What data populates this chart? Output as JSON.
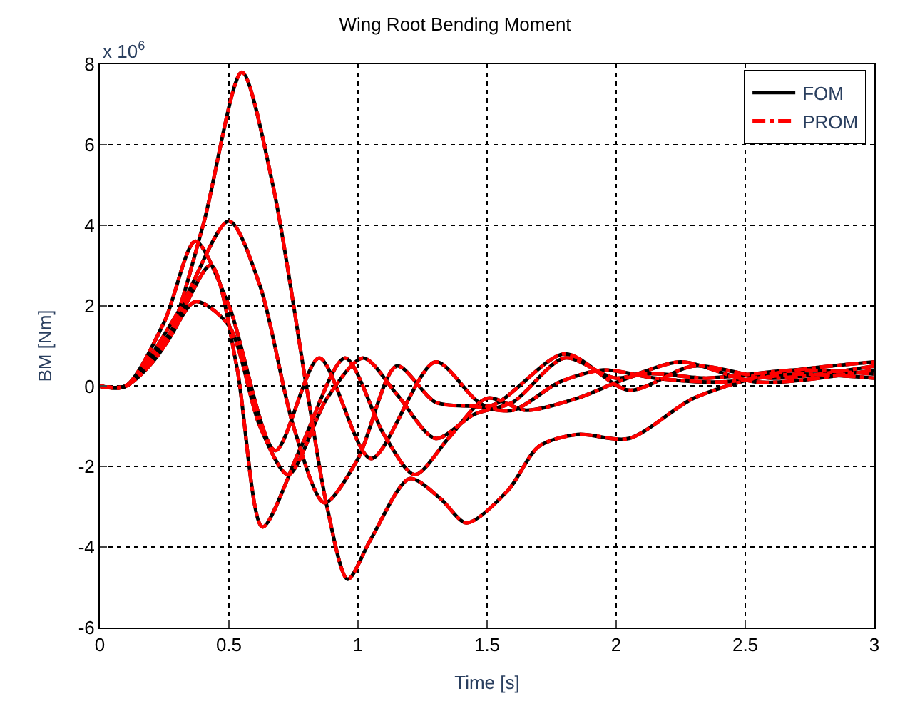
{
  "chart_data": {
    "type": "line",
    "title": "Wing Root Bending Moment",
    "xlabel": "Time [s]",
    "ylabel": "BM [Nm]",
    "annotations": [
      "x 10$^{6}$"
    ],
    "xlim": [
      0,
      3
    ],
    "xticks": [
      0,
      0.5,
      1,
      1.5,
      2,
      2.5,
      3
    ],
    "ylim": [
      -6,
      8
    ],
    "yticks": [
      -6,
      -4,
      -2,
      0,
      2,
      4,
      6,
      8
    ],
    "grid": true,
    "legend": "top right",
    "marker": "none",
    "series": [
      {
        "name": "FOM",
        "color": "#000000",
        "line_style": "solid",
        "x": [
          0,
          0.1,
          0.25,
          0.4,
          0.55,
          0.67,
          0.8,
          0.88,
          0.96,
          1.05,
          1.2,
          1.32,
          1.42,
          1.58,
          1.7,
          1.85,
          2.05,
          2.3,
          2.6,
          3
        ],
        "values": [
          0,
          0,
          1,
          4,
          7.8,
          5,
          0,
          -3,
          -4.8,
          -3.8,
          -2.3,
          -2.8,
          -3.4,
          -2.6,
          -1.5,
          -1.2,
          -1.3,
          -0.3,
          0.3,
          0.6
        ]
      },
      {
        "color": "#000000",
        "line_style": "solid",
        "x": [
          0,
          0.1,
          0.3,
          0.5,
          0.62,
          0.75,
          0.87,
          1.0,
          1.15,
          1.3,
          1.45,
          1.6,
          1.78,
          1.95,
          2.15,
          2.4,
          2.7,
          3
        ],
        "values": [
          0,
          0,
          1.8,
          4.1,
          2.5,
          -1,
          -2.9,
          -1.8,
          0.5,
          -0.4,
          -0.5,
          -0.6,
          0.1,
          0.4,
          0.2,
          0.1,
          0.3,
          0.2
        ]
      },
      {
        "color": "#000000",
        "line_style": "solid",
        "x": [
          0,
          0.1,
          0.25,
          0.37,
          0.5,
          0.68,
          0.85,
          1.05,
          1.3,
          1.5,
          1.8,
          2.05,
          2.3,
          2.6,
          3
        ],
        "values": [
          0,
          0,
          1.6,
          3.6,
          2,
          -1.6,
          0.7,
          -1.8,
          0.6,
          -0.5,
          0.8,
          -0.1,
          0.5,
          0.2,
          0.5
        ]
      },
      {
        "color": "#000000",
        "line_style": "solid",
        "x": [
          0,
          0.1,
          0.28,
          0.43,
          0.53,
          0.63,
          0.78,
          0.95,
          1.1,
          1.22,
          1.35,
          1.5,
          1.65,
          1.85,
          2.1,
          2.35,
          2.7,
          3
        ],
        "values": [
          0,
          0,
          1.4,
          3.0,
          0.5,
          -3.5,
          -1.5,
          0.7,
          -1.2,
          -2.2,
          -1.3,
          -0.3,
          -0.6,
          -0.3,
          0.3,
          0.2,
          0.4,
          0.3
        ]
      },
      {
        "color": "#000000",
        "line_style": "solid",
        "x": [
          0,
          0.1,
          0.25,
          0.37,
          0.5,
          0.62,
          0.73,
          0.88,
          1.02,
          1.15,
          1.3,
          1.45,
          1.6,
          1.8,
          2.0,
          2.25,
          2.55,
          3
        ],
        "values": [
          0,
          0,
          1,
          2.1,
          1.5,
          -1,
          -2.2,
          -0.3,
          0.7,
          -0.2,
          -1.3,
          -0.7,
          -0.4,
          0.7,
          0.2,
          0.6,
          0.1,
          0.4
        ]
      },
      {
        "name": "PROM",
        "color": "#ff0000",
        "line_style": "dashdot",
        "x": [
          0,
          0.1,
          0.25,
          0.4,
          0.55,
          0.67,
          0.8,
          0.88,
          0.96,
          1.05,
          1.2,
          1.32,
          1.42,
          1.58,
          1.7,
          1.85,
          2.05,
          2.3,
          2.6,
          3
        ],
        "values": [
          0,
          0,
          1,
          4,
          7.8,
          5,
          0,
          -3,
          -4.8,
          -3.8,
          -2.3,
          -2.8,
          -3.4,
          -2.6,
          -1.5,
          -1.2,
          -1.3,
          -0.3,
          0.3,
          0.6
        ]
      },
      {
        "color": "#ff0000",
        "line_style": "dashdot",
        "x": [
          0,
          0.1,
          0.3,
          0.5,
          0.62,
          0.75,
          0.87,
          1.0,
          1.15,
          1.3,
          1.45,
          1.6,
          1.78,
          1.95,
          2.15,
          2.4,
          2.7,
          3
        ],
        "values": [
          0,
          0,
          1.8,
          4.1,
          2.5,
          -1,
          -2.9,
          -1.8,
          0.5,
          -0.4,
          -0.5,
          -0.6,
          0.1,
          0.4,
          0.2,
          0.1,
          0.3,
          0.2
        ]
      },
      {
        "color": "#ff0000",
        "line_style": "dashdot",
        "x": [
          0,
          0.1,
          0.25,
          0.37,
          0.5,
          0.68,
          0.85,
          1.05,
          1.3,
          1.5,
          1.8,
          2.05,
          2.3,
          2.6,
          3
        ],
        "values": [
          0,
          0,
          1.6,
          3.6,
          2,
          -1.6,
          0.7,
          -1.8,
          0.6,
          -0.5,
          0.8,
          -0.1,
          0.5,
          0.2,
          0.5
        ]
      },
      {
        "color": "#ff0000",
        "line_style": "dashdot",
        "x": [
          0,
          0.1,
          0.28,
          0.43,
          0.53,
          0.63,
          0.78,
          0.95,
          1.1,
          1.22,
          1.35,
          1.5,
          1.65,
          1.85,
          2.1,
          2.35,
          2.7,
          3
        ],
        "values": [
          0,
          0,
          1.4,
          3.0,
          0.5,
          -3.5,
          -1.5,
          0.7,
          -1.2,
          -2.2,
          -1.3,
          -0.3,
          -0.6,
          -0.3,
          0.3,
          0.2,
          0.4,
          0.3
        ]
      },
      {
        "color": "#ff0000",
        "line_style": "dashdot",
        "x": [
          0,
          0.1,
          0.25,
          0.37,
          0.5,
          0.62,
          0.73,
          0.88,
          1.02,
          1.15,
          1.3,
          1.45,
          1.6,
          1.8,
          2.0,
          2.25,
          2.55,
          3
        ],
        "values": [
          0,
          0,
          1,
          2.1,
          1.5,
          -1,
          -2.2,
          -0.3,
          0.7,
          -0.2,
          -1.3,
          -0.7,
          -0.4,
          0.7,
          0.2,
          0.6,
          0.1,
          0.4
        ]
      }
    ]
  }
}
